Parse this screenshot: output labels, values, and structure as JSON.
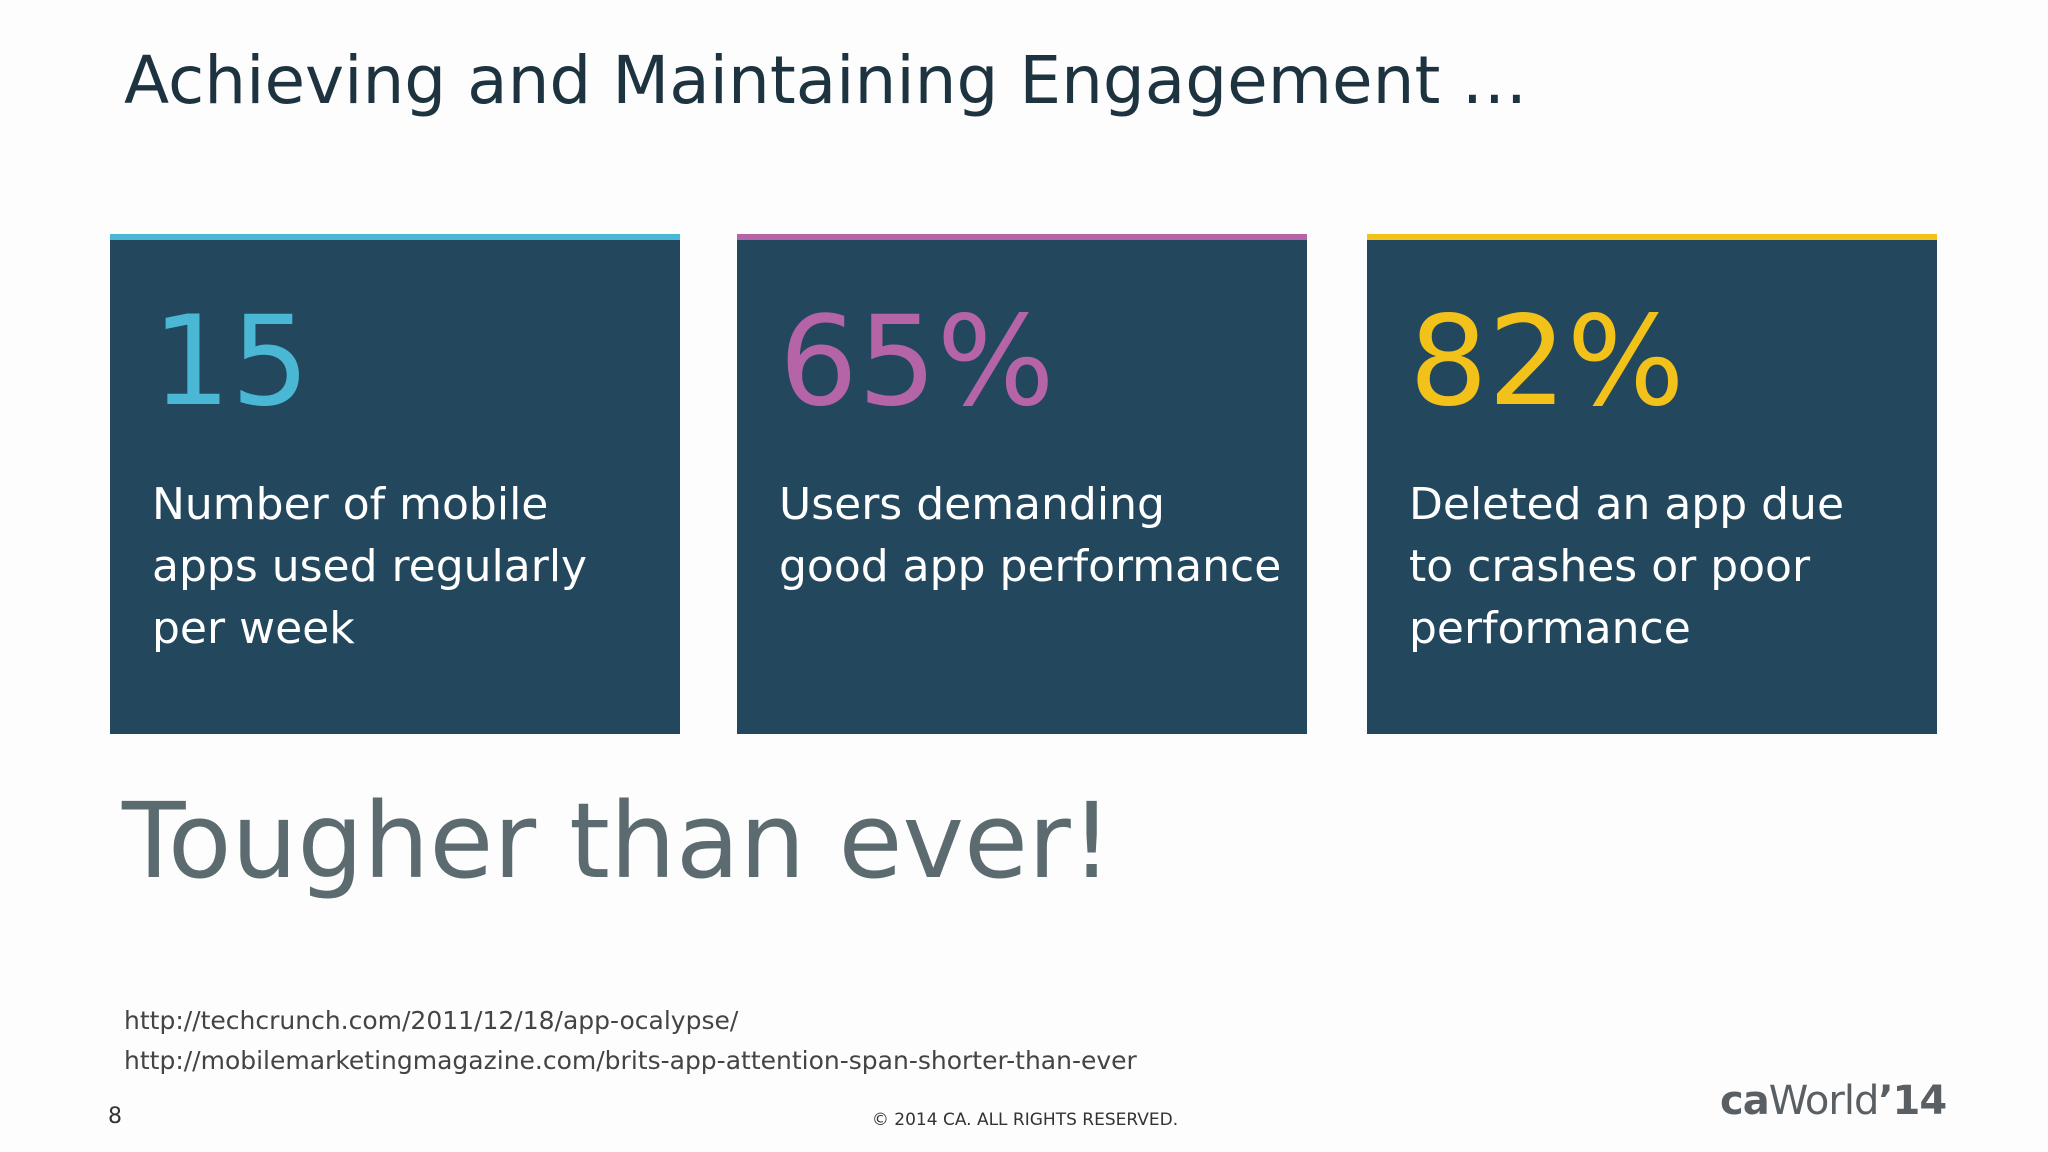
{
  "title": "Achieving and Maintaining Engagement …",
  "cards": [
    {
      "stat": "15",
      "color": "#4ab8d4",
      "lines": [
        "Number of mobile",
        "apps used regularly",
        "per week"
      ]
    },
    {
      "stat": "65%",
      "color": "#b565a7",
      "lines": [
        "Users demanding",
        "good app performance"
      ]
    },
    {
      "stat": "82%",
      "color": "#f2c21b",
      "lines": [
        "Deleted an app due",
        "to crashes or poor",
        "performance"
      ]
    }
  ],
  "headline": "Tougher than ever!",
  "sources": [
    "http://techcrunch.com/2011/12/18/app-ocalypse/",
    "http://mobilemarketingmagazine.com/brits-app-attention-span-shorter-than-ever"
  ],
  "footer": {
    "page_number": "8",
    "copyright": "© 2014 CA. ALL RIGHTS RESERVED.",
    "logo": {
      "brand": "ca",
      "event": "World",
      "year": "’14"
    }
  }
}
